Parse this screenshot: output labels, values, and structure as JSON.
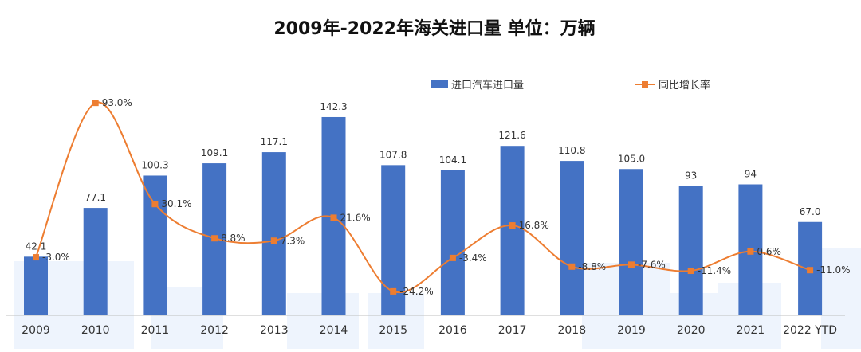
{
  "chart_data": {
    "type": "bar",
    "title": "2009年-2022年海关进口量  单位：万辆",
    "categories": [
      "2009",
      "2010",
      "2011",
      "2012",
      "2013",
      "2014",
      "2015",
      "2016",
      "2017",
      "2018",
      "2019",
      "2020",
      "2021",
      "2022 YTD"
    ],
    "series": [
      {
        "name": "进口汽车进口量",
        "type": "bar",
        "color": "#4472C4",
        "values": [
          42.1,
          77.1,
          100.3,
          109.1,
          117.1,
          142.3,
          107.8,
          104.1,
          121.6,
          110.8,
          105.0,
          93,
          94,
          67.0
        ],
        "labels": [
          "42.1",
          "77.1",
          "100.3",
          "109.1",
          "117.1",
          "142.3",
          "107.8",
          "104.1",
          "121.6",
          "110.8",
          "105.0",
          "93",
          "94",
          "67.0"
        ]
      },
      {
        "name": "同比增长率",
        "type": "line",
        "color": "#ED7D31",
        "smooth": true,
        "marker": "square",
        "values": [
          -3.0,
          93.0,
          30.1,
          8.8,
          7.3,
          21.6,
          -24.2,
          -3.4,
          16.8,
          -8.8,
          -7.6,
          -11.4,
          0.6,
          -11.0
        ],
        "labels": [
          "-3.0%",
          "93.0%",
          "30.1%",
          "8.8%",
          "7.3%",
          "21.6%",
          "-24.2%",
          "-3.4%",
          "16.8%",
          "-8.8%",
          "-7.6%",
          "-11.4%",
          "0.6%",
          "-11.0%"
        ]
      }
    ],
    "legend": "top",
    "grid": false
  }
}
